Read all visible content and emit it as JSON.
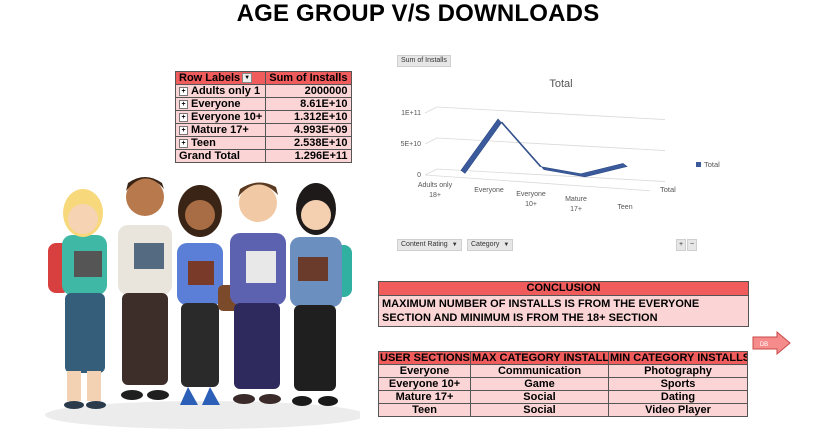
{
  "title": "AGE GROUP V/S DOWNLOADS",
  "pivot": {
    "header_labels": "Row Labels",
    "header_values": "Sum of Installs",
    "rows": [
      {
        "label": "Adults only 18+",
        "display_label": "Adults only 1",
        "value": "2000000"
      },
      {
        "label": "Everyone",
        "display_label": "Everyone",
        "value": "8.61E+10"
      },
      {
        "label": "Everyone 10+",
        "display_label": "Everyone 10+",
        "value": "1.312E+10"
      },
      {
        "label": "Mature 17+",
        "display_label": "Mature 17+",
        "value": "4.993E+09"
      },
      {
        "label": "Teen",
        "display_label": "Teen",
        "value": "2.538E+10"
      }
    ],
    "grand_total_label": "Grand Total",
    "grand_total_value": "1.296E+11"
  },
  "chart_buttons": {
    "sum_of_installs": "Sum of Installs",
    "content_rating": "Content Rating",
    "category": "Category",
    "plus": "+",
    "minus": "−"
  },
  "chart_data": {
    "type": "line",
    "title": "Total",
    "categories": [
      "Adults only 18+",
      "Everyone",
      "Everyone 10+",
      "Mature 17+",
      "Teen"
    ],
    "tick_labels": [
      [
        "Adults only",
        "18+"
      ],
      [
        "Everyone"
      ],
      [
        "Everyone",
        "10+"
      ],
      [
        "Mature",
        "17+"
      ],
      [
        "Teen"
      ]
    ],
    "series": [
      {
        "name": "Total",
        "values": [
          2000000,
          86100000000,
          13120000000,
          4993000000,
          25380000000
        ],
        "color": "#3a5a9c"
      }
    ],
    "y_ticks": [
      "0",
      "5E+10",
      "1E+11"
    ],
    "y_tick_values": [
      0,
      50000000000,
      100000000000
    ],
    "ylim": [
      0,
      100000000000
    ],
    "depth_axis_label": "Total",
    "legend": "right",
    "style": "3d-line"
  },
  "conclusion": {
    "heading": "CONCLUSION",
    "line1": "MAXIMUM NUMBER OF INSTALLS IS FROM THE EVERYONE",
    "line2": "SECTION AND MINIMUM IS FROM THE 18+ SECTION"
  },
  "arrow_label": "DB",
  "category_table": {
    "headers": [
      "USER SECTIONS",
      "MAX CATEGORY INSTALLS",
      "MIN CATEGORY INSTALLS"
    ],
    "rows": [
      [
        "Everyone",
        "Communication",
        "Photography"
      ],
      [
        "Everyone 10+",
        "Game",
        "Sports"
      ],
      [
        "Mature 17+",
        "Social",
        "Dating"
      ],
      [
        "Teen",
        "Social",
        "Video Player"
      ]
    ]
  },
  "colors": {
    "header_red": "#f05b5b",
    "cell_pink": "#fbd5d5",
    "line_blue": "#3a5a9c"
  }
}
